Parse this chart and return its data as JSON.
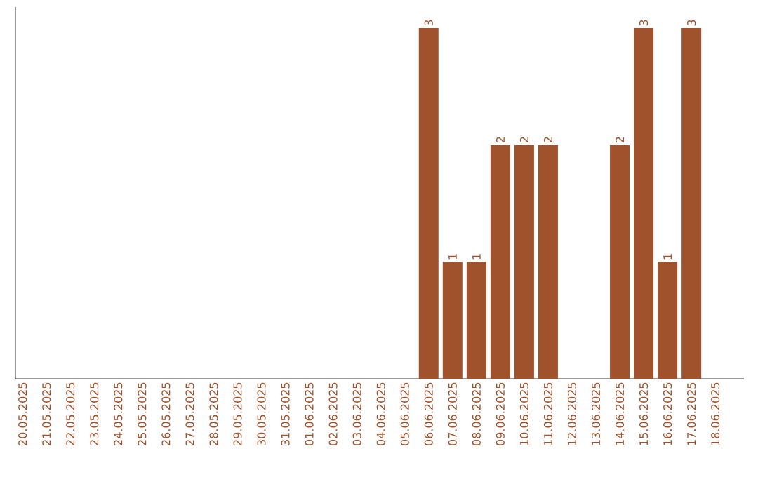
{
  "chart_data": {
    "type": "bar",
    "categories": [
      "20.05.2025",
      "21.05.2025",
      "22.05.2025",
      "23.05.2025",
      "24.05.2025",
      "25.05.2025",
      "26.05.2025",
      "27.05.2025",
      "28.05.2025",
      "29.05.2025",
      "30.05.2025",
      "31.05.2025",
      "01.06.2025",
      "02.06.2025",
      "03.06.2025",
      "04.06.2025",
      "05.06.2025",
      "06.06.2025",
      "07.06.2025",
      "08.06.2025",
      "09.06.2025",
      "10.06.2025",
      "11.06.2025",
      "12.06.2025",
      "13.06.2025",
      "14.06.2025",
      "15.06.2025",
      "16.06.2025",
      "17.06.2025",
      "18.06.2025"
    ],
    "values": [
      null,
      null,
      null,
      null,
      null,
      null,
      null,
      null,
      null,
      null,
      null,
      null,
      null,
      null,
      null,
      null,
      null,
      3,
      1,
      1,
      2,
      2,
      2,
      null,
      null,
      2,
      3,
      1,
      3,
      null
    ],
    "data_labels": true,
    "color": "#a0522d"
  }
}
